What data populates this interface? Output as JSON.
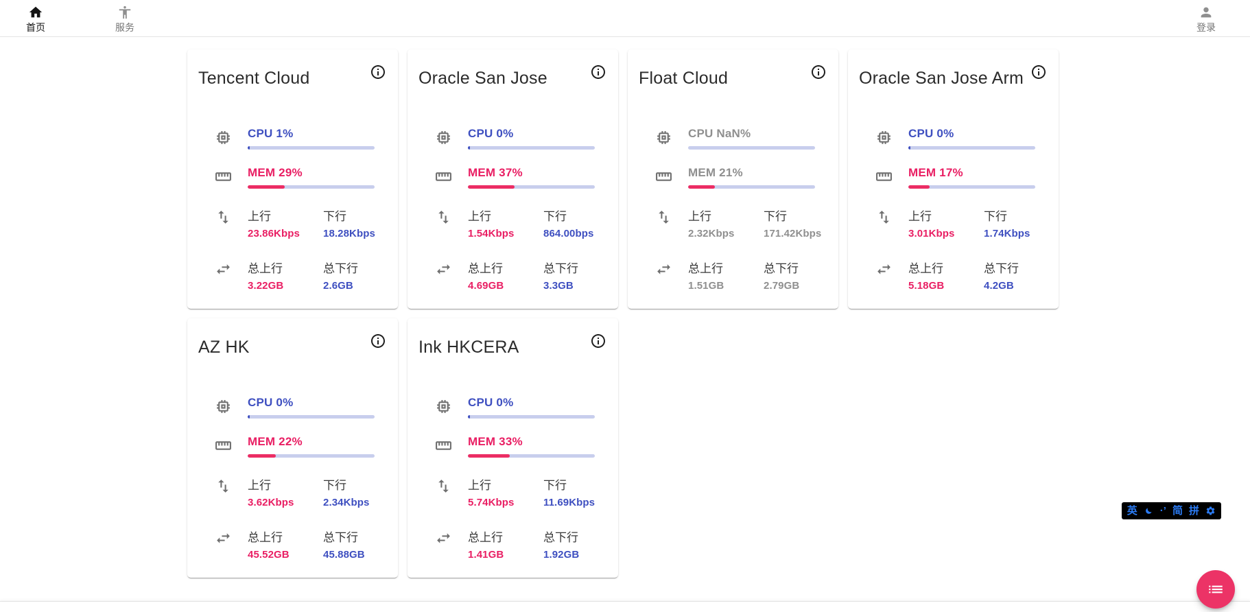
{
  "navbar": {
    "home": {
      "label": "首页"
    },
    "services": {
      "label": "服务"
    },
    "login": {
      "label": "登录"
    }
  },
  "shared": {
    "upload_label": "上行",
    "download_label": "下行",
    "total_upload_label": "总上行",
    "total_download_label": "总下行"
  },
  "servers": [
    {
      "name": "Tencent Cloud",
      "cpu_label": "CPU 1%",
      "cpu_pct": 1,
      "mem_label": "MEM 29%",
      "mem_pct": 29,
      "upload": "23.86Kbps",
      "download": "18.28Kbps",
      "total_upload": "3.22GB",
      "total_download": "2.6GB",
      "state": "online"
    },
    {
      "name": "Oracle San Jose",
      "cpu_label": "CPU 0%",
      "cpu_pct": 0,
      "mem_label": "MEM 37%",
      "mem_pct": 37,
      "upload": "1.54Kbps",
      "download": "864.00bps",
      "total_upload": "4.69GB",
      "total_download": "3.3GB",
      "state": "online"
    },
    {
      "name": "Float Cloud",
      "cpu_label": "CPU NaN%",
      "cpu_pct": null,
      "mem_label": "MEM 21%",
      "mem_pct": 21,
      "upload": "2.32Kbps",
      "download": "171.42Kbps",
      "total_upload": "1.51GB",
      "total_download": "2.79GB",
      "state": "offline"
    },
    {
      "name": "Oracle San Jose Arm",
      "cpu_label": "CPU 0%",
      "cpu_pct": 0,
      "mem_label": "MEM 17%",
      "mem_pct": 17,
      "upload": "3.01Kbps",
      "download": "1.74Kbps",
      "total_upload": "5.18GB",
      "total_download": "4.2GB",
      "state": "online"
    },
    {
      "name": "AZ HK",
      "cpu_label": "CPU 0%",
      "cpu_pct": 0,
      "mem_label": "MEM 22%",
      "mem_pct": 22,
      "upload": "3.62Kbps",
      "download": "2.34Kbps",
      "total_upload": "45.52GB",
      "total_download": "45.88GB",
      "state": "online"
    },
    {
      "name": "Ink HKCERA",
      "cpu_label": "CPU 0%",
      "cpu_pct": 0,
      "mem_label": "MEM 33%",
      "mem_pct": 33,
      "upload": "5.74Kbps",
      "download": "11.69Kbps",
      "total_upload": "1.41GB",
      "total_download": "1.92GB",
      "state": "online"
    }
  ],
  "ime": {
    "english_mode": "英",
    "punctuation": "·’",
    "simplified": "简",
    "pinyin": "拼"
  },
  "colors": {
    "cpu_blue": "#3e4fc0",
    "mem_pink": "#e91e63",
    "offline_gray": "#8f8f8f",
    "bar_track": "#c8ceed",
    "fab_pink": "#ec3366",
    "ime_blue": "#2b7bf3"
  }
}
